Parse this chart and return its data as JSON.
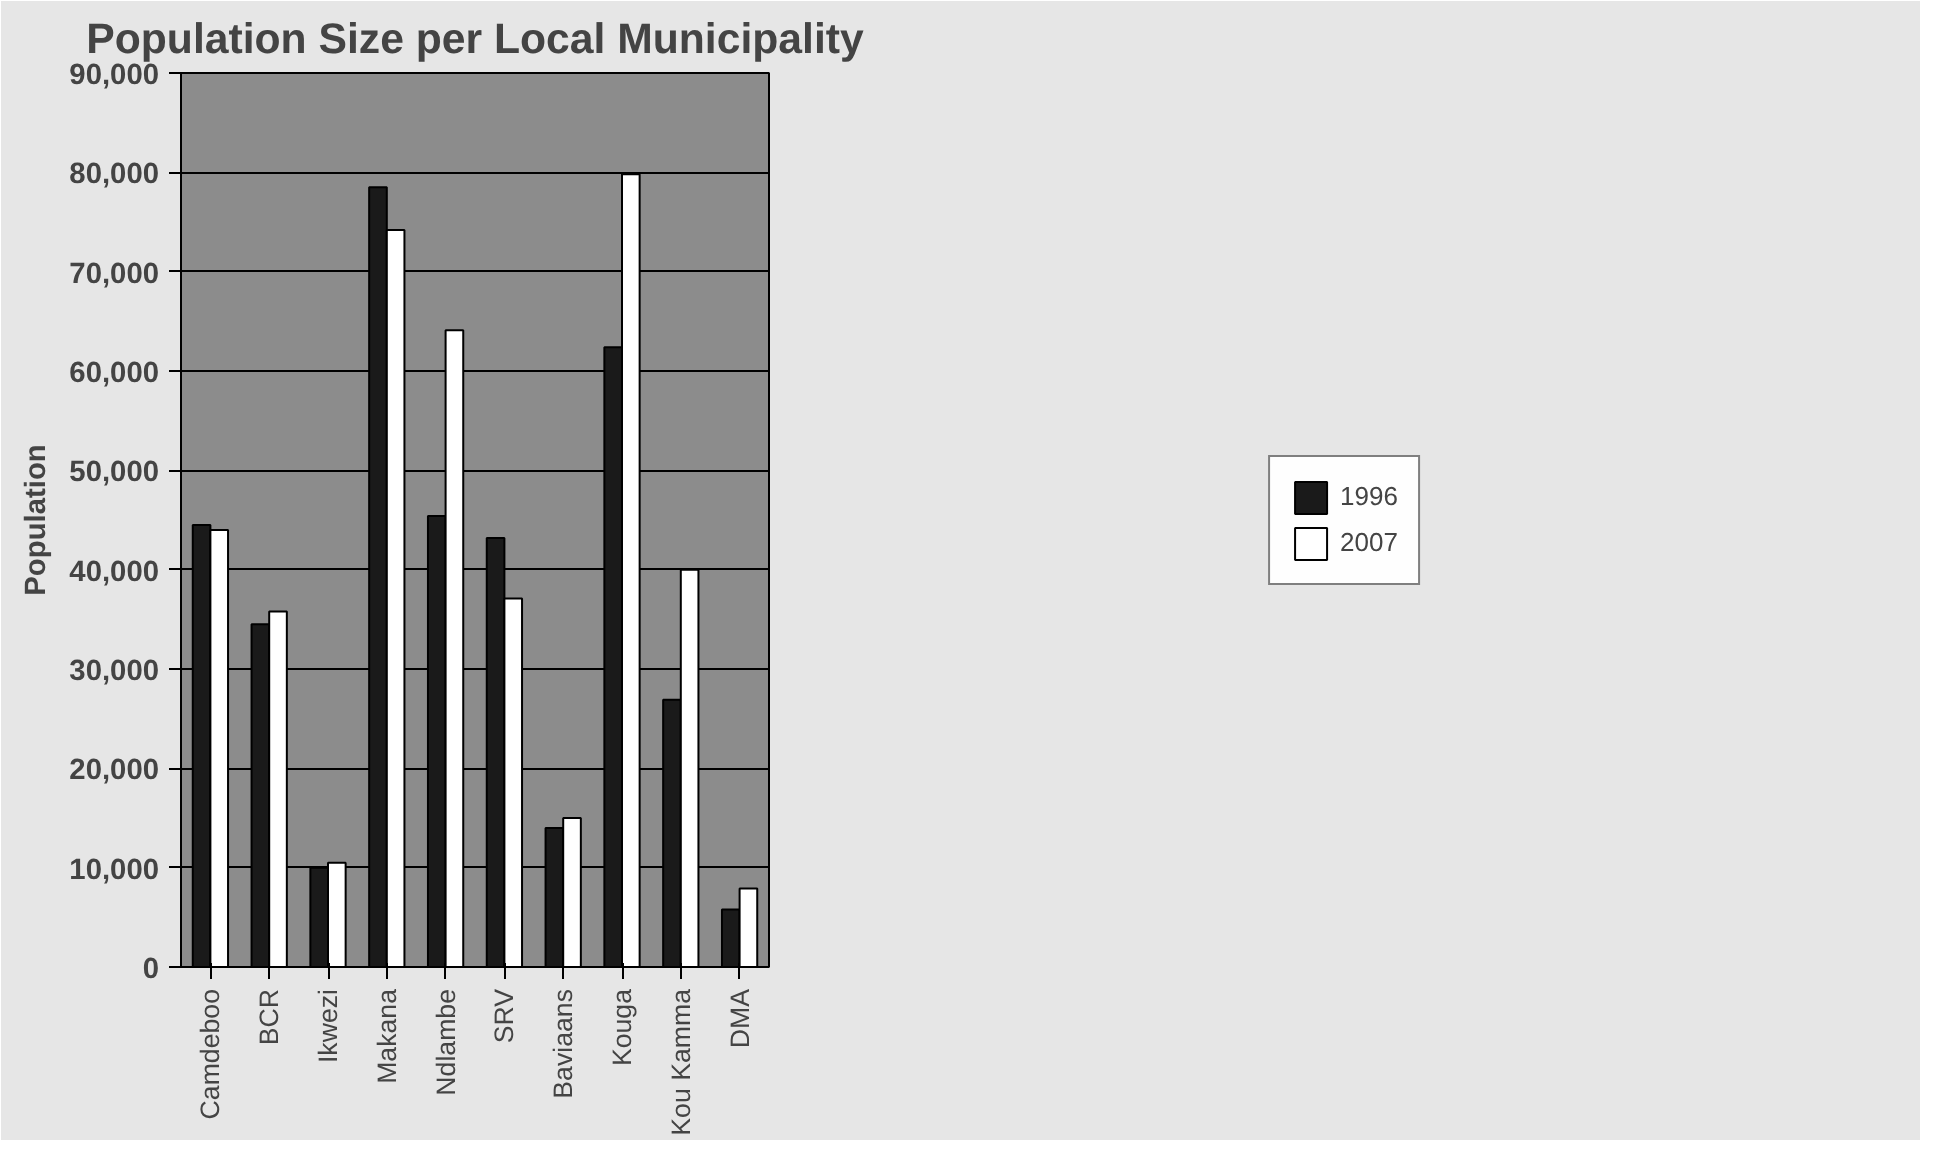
{
  "chart_data": {
    "type": "bar",
    "title": "Population Size per Local Municipality",
    "ylabel": "Population",
    "categories": [
      "Camdeboo",
      "BCR",
      "Ikwezi",
      "Makana",
      "Ndlambe",
      "SRV",
      "Baviaans",
      "Kouga",
      "Kou Kamma",
      "DMA"
    ],
    "series": [
      {
        "name": "1996",
        "color": "#1a1a1a",
        "values": [
          44500,
          34500,
          10000,
          78500,
          45400,
          43200,
          14000,
          62400,
          26900,
          5800
        ]
      },
      {
        "name": "2007",
        "color": "#ffffff",
        "values": [
          44000,
          35800,
          10500,
          74200,
          64100,
          37100,
          15000,
          79800,
          40000,
          7900
        ]
      }
    ],
    "ylim": [
      0,
      90000
    ],
    "yticks": [
      {
        "value": 0,
        "label": "0"
      },
      {
        "value": 10000,
        "label": "10,000"
      },
      {
        "value": 20000,
        "label": "20,000"
      },
      {
        "value": 30000,
        "label": "30,000"
      },
      {
        "value": 40000,
        "label": "40,000"
      },
      {
        "value": 50000,
        "label": "50,000"
      },
      {
        "value": 60000,
        "label": "60,000"
      },
      {
        "value": 70000,
        "label": "70,000"
      },
      {
        "value": 80000,
        "label": "80,000"
      },
      {
        "value": 90000,
        "label": "90,000"
      }
    ],
    "grid": "y",
    "legend": "right"
  }
}
